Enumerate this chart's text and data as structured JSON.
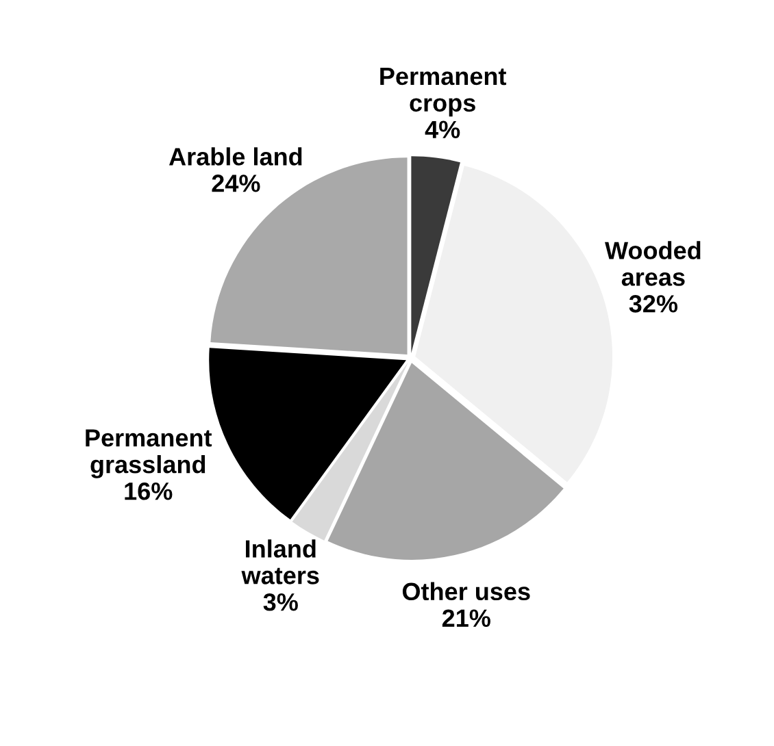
{
  "chart_data": {
    "type": "pie",
    "categories": [
      "Permanent\ncrops",
      "Wooded\nareas",
      "Other uses",
      "Inland\nwaters",
      "Permanent\ngrassland",
      "Arable land"
    ],
    "values": [
      4,
      32,
      21,
      3,
      16,
      24
    ],
    "value_labels": [
      "4%",
      "32%",
      "21%",
      "3%",
      "16%",
      "24%"
    ],
    "colors": [
      "#3a3a3a",
      "#f0f0f0",
      "#a6a6a6",
      "#d9d9d9",
      "#000000",
      "#a9a9a9"
    ],
    "legend": false
  }
}
